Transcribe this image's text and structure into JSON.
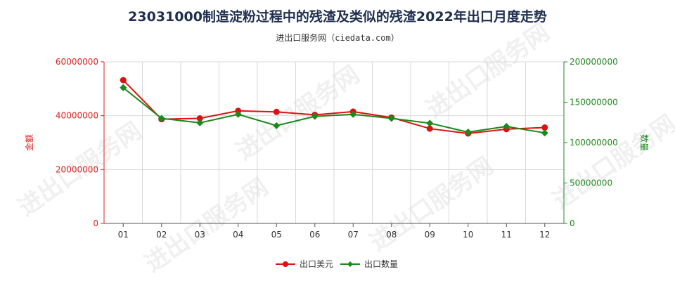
{
  "chart_data": {
    "type": "line",
    "title": "23031000制造淀粉过程中的残渣及类似的残渣2022年出口月度走势",
    "subtitle": "进出口服务网（ciedata.com）",
    "categories": [
      "01",
      "02",
      "03",
      "04",
      "05",
      "06",
      "07",
      "08",
      "09",
      "10",
      "11",
      "12"
    ],
    "left_axis": {
      "label": "金额",
      "ylim": [
        0,
        60000000
      ],
      "ticks": [
        "0",
        "20000000",
        "40000000",
        "60000000"
      ],
      "color": "#dd2222"
    },
    "right_axis": {
      "label": "数量",
      "ylim": [
        0,
        200000000
      ],
      "ticks": [
        "0",
        "50000000",
        "100000000",
        "150000000",
        "200000000"
      ],
      "color": "#228822"
    },
    "series": [
      {
        "name": "出口美元",
        "axis": "left",
        "color": "#dd1111",
        "values": [
          53200000,
          38700000,
          39000000,
          41800000,
          41400000,
          40300000,
          41500000,
          39300000,
          35200000,
          33400000,
          35000000,
          35600000
        ]
      },
      {
        "name": "出口数量",
        "axis": "right",
        "color": "#1a8a1a",
        "values": [
          168000000,
          130000000,
          124500000,
          135000000,
          121000000,
          132500000,
          135000000,
          130000000,
          124000000,
          113000000,
          120000000,
          112000000
        ]
      }
    ],
    "grid": true,
    "legend_position": "bottom"
  },
  "watermark": "进出口服务网"
}
